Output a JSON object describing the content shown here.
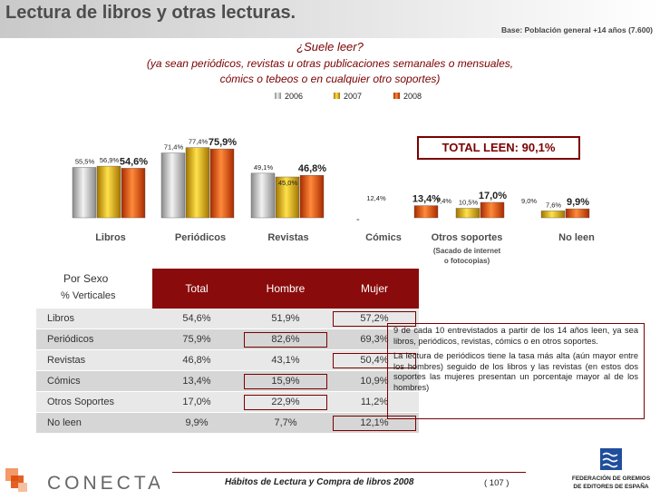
{
  "header": {
    "title": "Lectura de libros y otras lecturas.",
    "base": "Base: Población general +14 años (7.600)"
  },
  "question": {
    "main": "¿Suele leer?",
    "line1": "(ya sean periódicos, revistas u otras publicaciones semanales o mensuales,",
    "line2": "cómics o tebeos o en cualquier otro soportes)"
  },
  "chart_data": {
    "type": "bar",
    "categories": [
      "Libros",
      "Periódicos",
      "Revistas",
      "Cómics",
      "Otros soportes",
      "No leen"
    ],
    "category_sublabel": {
      "Otros soportes": [
        "(Sacado de internet",
        "o fotocopias)"
      ]
    },
    "series": [
      {
        "name": "2006",
        "values": [
          55.5,
          71.4,
          49.1,
          null,
          null,
          null
        ],
        "labels": [
          "55,5%",
          "71,4%",
          "49,1%",
          "",
          "7,4%",
          "9,0%"
        ],
        "color": "#b5b5b5"
      },
      {
        "name": "2007",
        "values": [
          56.9,
          77.4,
          45.0,
          null,
          10.5,
          7.6
        ],
        "labels": [
          "56,9%",
          "77,4%",
          "45,0%",
          "",
          "10,5%",
          "7,6%"
        ],
        "color": "#e0a800"
      },
      {
        "name": "2008",
        "values": [
          54.6,
          75.9,
          46.8,
          13.4,
          17.0,
          9.9
        ],
        "labels": [
          "54,6%",
          "75,9%",
          "46,8%",
          "13,4%",
          "17,0%",
          "9,9%"
        ],
        "color": "#e04400"
      }
    ],
    "extra_labels": [
      "12,4%"
    ],
    "dash_marker": "-",
    "total_label": "TOTAL LEEN: 90,1%",
    "legend_position": "top"
  },
  "table": {
    "title": "Por Sexo",
    "subtitle": "% Verticales",
    "columns": [
      "Total",
      "Hombre",
      "Mujer"
    ],
    "rows": [
      {
        "label": "Libros",
        "total": "54,6%",
        "hombre": "51,9%",
        "mujer": "57,2%"
      },
      {
        "label": "Periódicos",
        "total": "75,9%",
        "hombre": "82,6%",
        "mujer": "69,3%"
      },
      {
        "label": "Revistas",
        "total": "46,8%",
        "hombre": "43,1%",
        "mujer": "50,4%"
      },
      {
        "label": "Cómics",
        "total": "13,4%",
        "hombre": "15,9%",
        "mujer": "10,9%"
      },
      {
        "label": "Otros Soportes",
        "total": "17,0%",
        "hombre": "22,9%",
        "mujer": "11,2%"
      },
      {
        "label": "No leen",
        "total": "9,9%",
        "hombre": "7,7%",
        "mujer": "12,1%"
      }
    ]
  },
  "notes": {
    "p1": "9 de cada 10 entrevistados a partir de los 14 años leen, ya sea libros, periódicos, revistas, cómics o en otros soportes.",
    "p2": "La lectura de periódicos tiene la tasa más alta (aún mayor entre los hombres) seguido de los libros y las revistas (en estos dos soportes las mujeres presentan un porcentaje mayor al de los hombres)"
  },
  "footer": {
    "text": "Hábitos de Lectura y Compra de libros 2008",
    "page": "( 107 )",
    "logo_left": "CONECTA",
    "logo_right_line1": "FEDERACIÓN DE GREMIOS",
    "logo_right_line2": "DE EDITORES DE ESPAÑA"
  },
  "colors": {
    "accent": "#7a0000",
    "table_header": "#8a0b0b"
  }
}
